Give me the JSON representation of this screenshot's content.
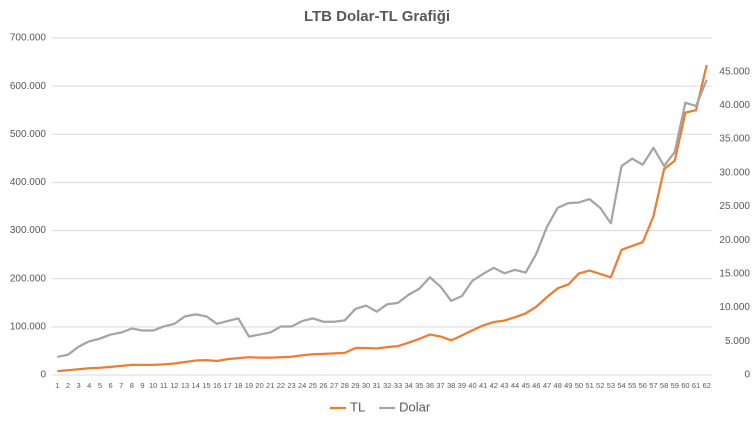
{
  "chart_data": {
    "type": "line",
    "title": "LTB Dolar-TL Grafiği",
    "categories": [
      "1",
      "2",
      "3",
      "4",
      "5",
      "6",
      "7",
      "8",
      "9",
      "10",
      "11",
      "12",
      "13",
      "14",
      "15",
      "16",
      "17",
      "18",
      "19",
      "20",
      "21",
      "22",
      "23",
      "24",
      "25",
      "26",
      "27",
      "28",
      "29",
      "30",
      "31",
      "32",
      "33",
      "34",
      "35",
      "36",
      "37",
      "38",
      "39",
      "40",
      "41",
      "42",
      "43",
      "44",
      "45",
      "46",
      "47",
      "48",
      "49",
      "50",
      "51",
      "52",
      "53",
      "54",
      "55",
      "56",
      "57",
      "58",
      "59",
      "60",
      "61",
      "62"
    ],
    "series": [
      {
        "name": "TL",
        "color": "#ed7d31",
        "values": [
          8000,
          10000,
          12000,
          14000,
          15000,
          17000,
          19000,
          21000,
          21000,
          21000,
          22000,
          24000,
          27000,
          30000,
          31000,
          29000,
          33000,
          35000,
          37000,
          36000,
          36000,
          37000,
          38000,
          41000,
          43000,
          44000,
          45000,
          46000,
          56000,
          56000,
          55000,
          58000,
          60000,
          67000,
          75000,
          84000,
          80000,
          72000,
          82000,
          93000,
          103000,
          110000,
          113000,
          120000,
          128000,
          142000,
          162000,
          180000,
          188000,
          211000,
          217000,
          210000,
          203000,
          260000,
          268000,
          276000,
          330000,
          428000,
          445000,
          545000,
          550000,
          644000
        ]
      },
      {
        "name": "Dolar",
        "color": "#a5a5a5",
        "axis": "y2",
        "values": [
          2700,
          3000,
          4200,
          5000,
          5400,
          6000,
          6300,
          6900,
          6600,
          6600,
          7200,
          7600,
          8700,
          9000,
          8700,
          7600,
          8000,
          8400,
          5700,
          6000,
          6300,
          7200,
          7200,
          8000,
          8400,
          7900,
          7900,
          8100,
          9800,
          10300,
          9400,
          10500,
          10700,
          11900,
          12800,
          14500,
          13100,
          11000,
          11700,
          14000,
          15000,
          15900,
          15100,
          15600,
          15200,
          18000,
          22000,
          24800,
          25500,
          25600,
          26100,
          24800,
          22500,
          31000,
          32100,
          31200,
          33700,
          31000,
          33100,
          40400,
          39900,
          43800
        ]
      }
    ],
    "ylim": [
      0,
      700000
    ],
    "yticks": [
      0,
      {
        "value": 100000,
        "label": "100.000"
      },
      {
        "value": 200000,
        "label": "200.000"
      },
      {
        "value": 300000,
        "label": "300.000"
      },
      {
        "value": 400000,
        "label": "400.000"
      },
      {
        "value": 500000,
        "label": "500.000"
      },
      {
        "value": 600000,
        "label": "600.000"
      },
      {
        "value": 700000,
        "label": "700.000"
      }
    ],
    "y2lim": [
      0,
      50000
    ],
    "y2ticks": [
      0,
      {
        "value": 5000,
        "label": "5.000"
      },
      {
        "value": 10000,
        "label": "10.000"
      },
      {
        "value": 15000,
        "label": "15.000"
      },
      {
        "value": 20000,
        "label": "20.000"
      },
      {
        "value": 25000,
        "label": "25.000"
      },
      {
        "value": 30000,
        "label": "30.000"
      },
      {
        "value": 35000,
        "label": "35.000"
      },
      {
        "value": 40000,
        "label": "40.000"
      },
      {
        "value": 45000,
        "label": "45.000"
      }
    ],
    "grid": true,
    "legend": "bottom"
  }
}
